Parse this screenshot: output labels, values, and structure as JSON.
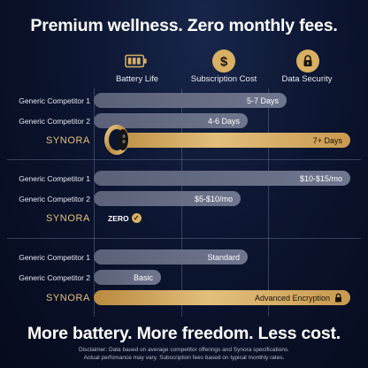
{
  "headline_top": "Premium wellness. Zero monthly fees.",
  "headline_bottom": "More battery. More freedom. Less cost.",
  "columns": [
    {
      "label": "Battery Life",
      "icon": "battery-icon"
    },
    {
      "label": "Subscription Cost",
      "icon": "dollar-icon"
    },
    {
      "label": "Data Security",
      "icon": "lock-icon"
    }
  ],
  "sections": {
    "battery": {
      "rows": [
        {
          "label": "Generic Competitor 1",
          "value": "5-7 Days"
        },
        {
          "label": "Generic Competitor 2",
          "value": "4-6 Days"
        },
        {
          "label": "SYNORA",
          "value": "7+ Days"
        }
      ]
    },
    "subscription": {
      "rows": [
        {
          "label": "Generic Competitor 1",
          "value": "$10-$15/mo"
        },
        {
          "label": "Generic Competitor 2",
          "value": "$5-$10/mo"
        },
        {
          "label": "SYNORA",
          "value": "ZERO"
        }
      ]
    },
    "security": {
      "rows": [
        {
          "label": "Generic Competitor 1",
          "value": "Standard"
        },
        {
          "label": "Generic Competitor 2",
          "value": "Basic"
        },
        {
          "label": "SYNORA",
          "value": "Advanced Encryption"
        }
      ]
    }
  },
  "disclaimer_line1": "Disclaimer: Data based on average competitor offerings and Synora specifications.",
  "disclaimer_line2": "Actual perfomance may vary. Subscription fees based on typical monthly rates.",
  "colors": {
    "gold": "#d8b064",
    "grey_bar": "#656c83",
    "background": "#0c1530",
    "brand_text": "#e6c278"
  }
}
